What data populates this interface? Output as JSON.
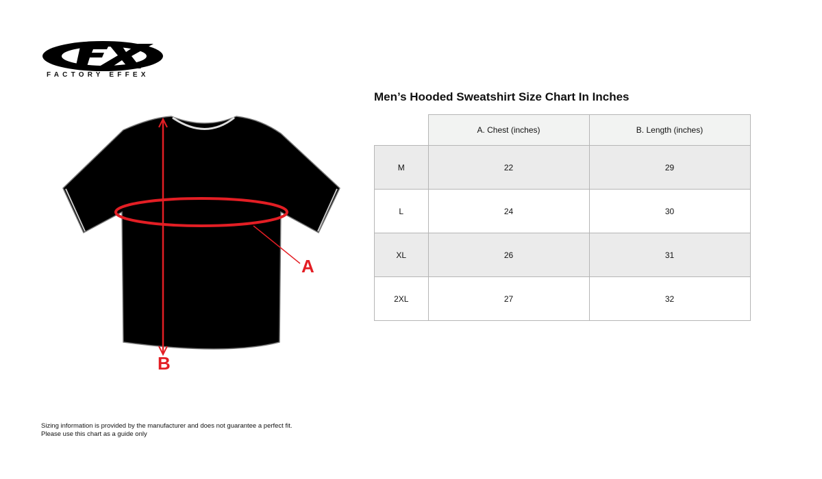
{
  "brand": {
    "name": "FACTORY EFFEX",
    "logo_letters": "FX"
  },
  "diagram": {
    "label_a": "A",
    "label_b": "B",
    "accent_color": "#e31e24"
  },
  "chart": {
    "title": "Men’s Hooded Sweatshirt Size Chart In Inches",
    "headers": [
      "",
      "A. Chest (inches)",
      "B. Length (inches)"
    ],
    "rows": [
      {
        "size": "M",
        "chest": "22",
        "length": "29"
      },
      {
        "size": "L",
        "chest": "24",
        "length": "30"
      },
      {
        "size": "XL",
        "chest": "26",
        "length": "31"
      },
      {
        "size": "2XL",
        "chest": "27",
        "length": "32"
      }
    ]
  },
  "footnote": {
    "line1": "Sizing information is provided by the manufacturer and does not guarantee a perfect fit.",
    "line2": "Please use this chart as a guide only"
  }
}
